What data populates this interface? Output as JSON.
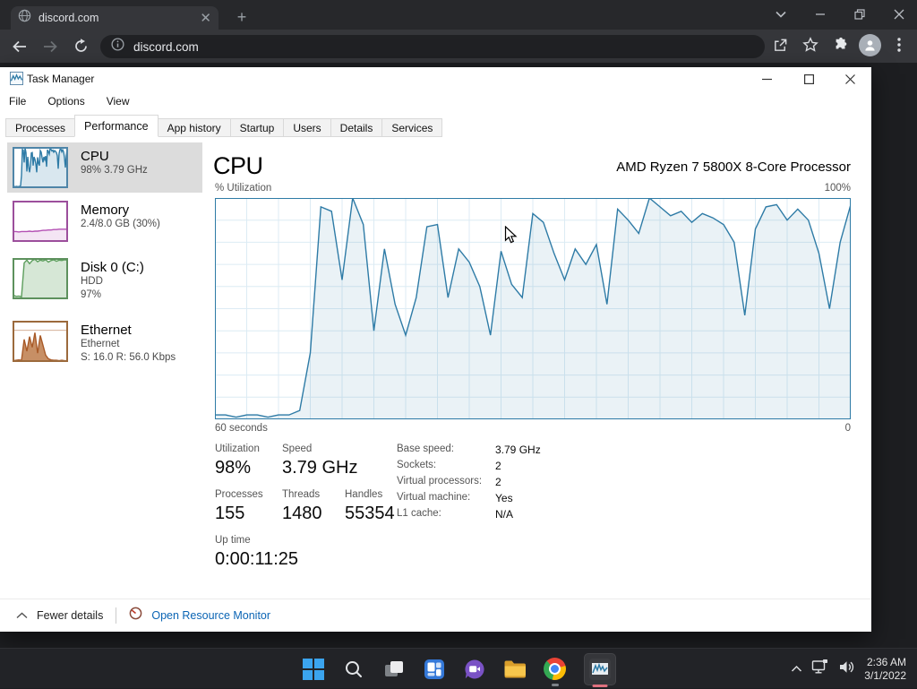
{
  "browser": {
    "tab_title": "discord.com",
    "url": "discord.com"
  },
  "taskman": {
    "window_title": "Task Manager",
    "menus": [
      {
        "label": "File"
      },
      {
        "label": "Options"
      },
      {
        "label": "View"
      }
    ],
    "tabs": [
      {
        "label": "Processes"
      },
      {
        "label": "Performance"
      },
      {
        "label": "App history"
      },
      {
        "label": "Startup"
      },
      {
        "label": "Users"
      },
      {
        "label": "Details"
      },
      {
        "label": "Services"
      }
    ],
    "sidebar": [
      {
        "title": "CPU",
        "line1": "98% 3.79 GHz",
        "line2": ""
      },
      {
        "title": "Memory",
        "line1": "2.4/8.0 GB (30%)",
        "line2": ""
      },
      {
        "title": "Disk 0 (C:)",
        "line1": "HDD",
        "line2": "97%"
      },
      {
        "title": "Ethernet",
        "line1": "Ethernet",
        "line2": "S: 16.0 R: 56.0 Kbps"
      }
    ],
    "main": {
      "title": "CPU",
      "subtitle": "AMD Ryzen 7 5800X 8-Core Processor"
    },
    "stats": {
      "utilization_label": "Utilization",
      "utilization": "98%",
      "speed_label": "Speed",
      "speed": "3.79 GHz",
      "processes_label": "Processes",
      "processes": "155",
      "threads_label": "Threads",
      "threads": "1480",
      "handles_label": "Handles",
      "handles": "55354",
      "base_speed_label": "Base speed:",
      "base_speed": "3.79 GHz",
      "sockets_label": "Sockets:",
      "sockets": "2",
      "virtual_processors_label": "Virtual processors:",
      "virtual_processors": "2",
      "virtual_machine_label": "Virtual machine:",
      "virtual_machine": "Yes",
      "l1_cache_label": "L1 cache:",
      "l1_cache": "N/A",
      "uptime_label": "Up time",
      "uptime": "0:00:11:25"
    },
    "footer": {
      "fewer_details": "Fewer details",
      "open_resource_monitor": "Open Resource Monitor"
    }
  },
  "taskbar": {
    "clock_time": "2:36 AM",
    "clock_date": "3/1/2022"
  },
  "colors": {
    "cpu_line": "#2e7ba6",
    "memory_line": "#b450b4",
    "disk_line": "#5d9e5d",
    "ethernet_line": "#a85a28",
    "link_blue": "#0a64b4",
    "active_indicator_pink": "#e0717f"
  },
  "chart_data": [
    {
      "type": "area",
      "name": "cpu-utilization-60s",
      "title": "% Utilization",
      "top_left_label": "% Utilization",
      "top_right_label": "100%",
      "bottom_left_label": "60 seconds",
      "bottom_right_label": "0",
      "ylim": [
        0,
        100
      ],
      "x_window_seconds": 60,
      "grid": true,
      "grid_cols": 20,
      "grid_rows": 10,
      "grid_color": "#dcebf4",
      "line_color": "#2e7ba6",
      "border_color": "#2e7ba6",
      "fill_color": "rgba(46,123,166,0.10)",
      "series": [
        {
          "name": "CPU utilization %",
          "values": [
            2,
            2,
            1,
            2,
            2,
            1,
            2,
            2,
            4,
            30,
            96,
            94,
            63,
            100,
            88,
            40,
            77,
            52,
            38,
            55,
            87,
            88,
            55,
            77,
            71,
            60,
            38,
            76,
            61,
            55,
            93,
            89,
            75,
            63,
            77,
            70,
            79,
            52,
            95,
            90,
            84,
            100,
            96,
            92,
            94,
            89,
            93,
            91,
            88,
            80,
            47,
            86,
            96,
            97,
            90,
            95,
            90,
            75,
            50,
            80,
            97
          ]
        }
      ]
    },
    {
      "type": "area",
      "name": "cpu-thumbnail",
      "grid": false,
      "line_color": "#2e7ba6",
      "border_color": "#4e85a8",
      "fill_color": "rgba(46,123,166,0.18)",
      "ylim": [
        0,
        100
      ],
      "series": [
        {
          "name": "CPU",
          "values": [
            2,
            2,
            1,
            2,
            2,
            1,
            2,
            2,
            4,
            30,
            96,
            94,
            63,
            100,
            88,
            40,
            77,
            52,
            38,
            55,
            87,
            88,
            55,
            77,
            71,
            60,
            38,
            76,
            61,
            55,
            93,
            89,
            75,
            63,
            77,
            70,
            79,
            52,
            95,
            90,
            84,
            100,
            96,
            92,
            94,
            89,
            93,
            91,
            88,
            80,
            47,
            86,
            96,
            97,
            90,
            95,
            90,
            75,
            50,
            80,
            97
          ]
        }
      ]
    },
    {
      "type": "area",
      "name": "memory-thumbnail",
      "grid": false,
      "line_color": "#b450b4",
      "border_color": "#9c4f9c",
      "fill_color": "rgba(180,80,180,0.15)",
      "ylim": [
        0,
        100
      ],
      "series": [
        {
          "name": "Memory in use",
          "values": [
            24,
            24,
            23,
            24,
            24,
            24,
            25,
            24,
            25,
            25,
            26,
            27,
            27,
            28,
            28,
            29,
            29,
            30,
            30,
            30,
            30
          ]
        }
      ]
    },
    {
      "type": "area",
      "name": "disk-thumbnail",
      "grid": false,
      "line_color": "#5d9e5d",
      "border_color": "#5d915d",
      "fill_color": "rgba(93,158,93,0.25)",
      "ylim": [
        0,
        100
      ],
      "series": [
        {
          "name": "Disk active time",
          "values": [
            8,
            5,
            6,
            4,
            90,
            97,
            88,
            96,
            99,
            93,
            97,
            95,
            98,
            92,
            96,
            98,
            94,
            97,
            96,
            98,
            97
          ]
        }
      ]
    },
    {
      "type": "area",
      "name": "ethernet-thumbnail",
      "grid": false,
      "hline_at": 78,
      "line_color": "#a85a28",
      "border_color": "#9c6a3c",
      "fill_color": "rgba(180,105,50,0.75)",
      "ylim": [
        0,
        100
      ],
      "series": [
        {
          "name": "Throughput",
          "values": [
            1,
            2,
            3,
            2,
            55,
            25,
            62,
            35,
            72,
            20,
            65,
            40,
            15,
            6,
            3,
            2,
            2,
            1,
            2,
            1,
            1
          ]
        }
      ]
    }
  ]
}
